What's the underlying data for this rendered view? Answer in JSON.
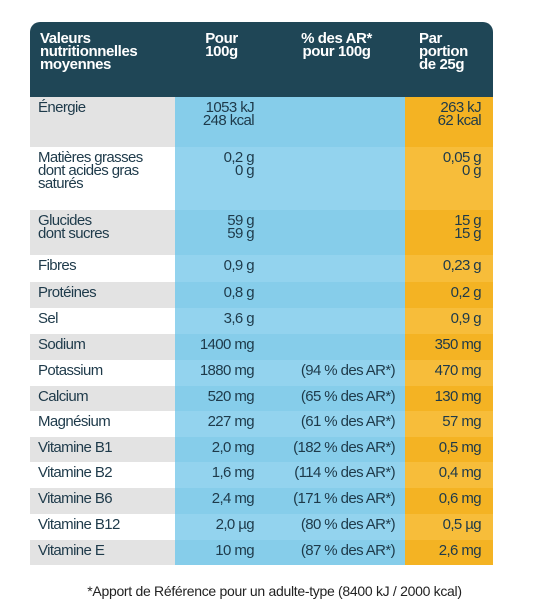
{
  "header": {
    "nutrients": [
      "Valeurs",
      "nutritionnelles",
      "moyennes"
    ],
    "per_100g": [
      "Pour",
      "100g"
    ],
    "ar": [
      "% des AR*",
      "pour 100g"
    ],
    "per_portion": [
      "Par",
      "portion",
      "de 25g"
    ]
  },
  "rows": [
    {
      "label": [
        "Énergie"
      ],
      "per_100g": [
        "1053 kJ",
        "248 kcal"
      ],
      "per_portion": [
        "263 kJ",
        "62 kcal"
      ]
    },
    {
      "label": [
        "Matières grasses",
        "dont acides gras",
        "saturés"
      ],
      "per_100g": [
        "0,2 g",
        "0 g"
      ],
      "per_portion": [
        "0,05 g",
        "0 g"
      ]
    },
    {
      "label": [
        "Glucides",
        "dont sucres"
      ],
      "per_100g": [
        "59 g",
        "59 g"
      ],
      "per_portion": [
        "15 g",
        "15 g"
      ]
    },
    {
      "label": [
        "Fibres"
      ],
      "per_100g": [
        "0,9 g"
      ],
      "per_portion": [
        "0,23 g"
      ]
    },
    {
      "label": [
        "Protéines"
      ],
      "per_100g": [
        "0,8 g"
      ],
      "per_portion": [
        "0,2 g"
      ]
    },
    {
      "label": [
        "Sel"
      ],
      "per_100g": [
        "3,6 g"
      ],
      "per_portion": [
        "0,9 g"
      ]
    },
    {
      "label": [
        "Sodium"
      ],
      "per_100g": [
        "1400 mg"
      ],
      "per_portion": [
        "350 mg"
      ]
    },
    {
      "label": [
        "Potassium"
      ],
      "per_100g": [
        "1880 mg"
      ],
      "ar": [
        "(94 % des AR*)"
      ],
      "per_portion": [
        "470 mg"
      ]
    },
    {
      "label": [
        "Calcium"
      ],
      "per_100g": [
        "520 mg"
      ],
      "ar": [
        "(65 % des AR*)"
      ],
      "per_portion": [
        "130 mg"
      ]
    },
    {
      "label": [
        "Magnésium"
      ],
      "per_100g": [
        "227 mg"
      ],
      "ar": [
        "(61 % des AR*)"
      ],
      "per_portion": [
        "57 mg"
      ]
    },
    {
      "label": [
        "Vitamine B1"
      ],
      "per_100g": [
        "2,0 mg"
      ],
      "ar": [
        "(182 % des AR*)"
      ],
      "per_portion": [
        "0,5 mg"
      ]
    },
    {
      "label": [
        "Vitamine B2"
      ],
      "per_100g": [
        "1,6 mg"
      ],
      "ar": [
        "(114 % des AR*)"
      ],
      "per_portion": [
        "0,4 mg"
      ]
    },
    {
      "label": [
        "Vitamine B6"
      ],
      "per_100g": [
        "2,4 mg"
      ],
      "ar": [
        "(171 % des AR*)"
      ],
      "per_portion": [
        "0,6 mg"
      ]
    },
    {
      "label": [
        "Vitamine B12"
      ],
      "per_100g": [
        "2,0 µg"
      ],
      "ar": [
        "(80 % des AR*)"
      ],
      "per_portion": [
        "0,5 µg"
      ]
    },
    {
      "label": [
        "Vitamine E"
      ],
      "per_100g": [
        "10 mg"
      ],
      "ar": [
        "(87 % des AR*)"
      ],
      "per_portion": [
        "2,6 mg"
      ]
    }
  ],
  "footnote": "*Apport de Référence pour un adulte-type (8400 kJ / 2000 kcal)"
}
